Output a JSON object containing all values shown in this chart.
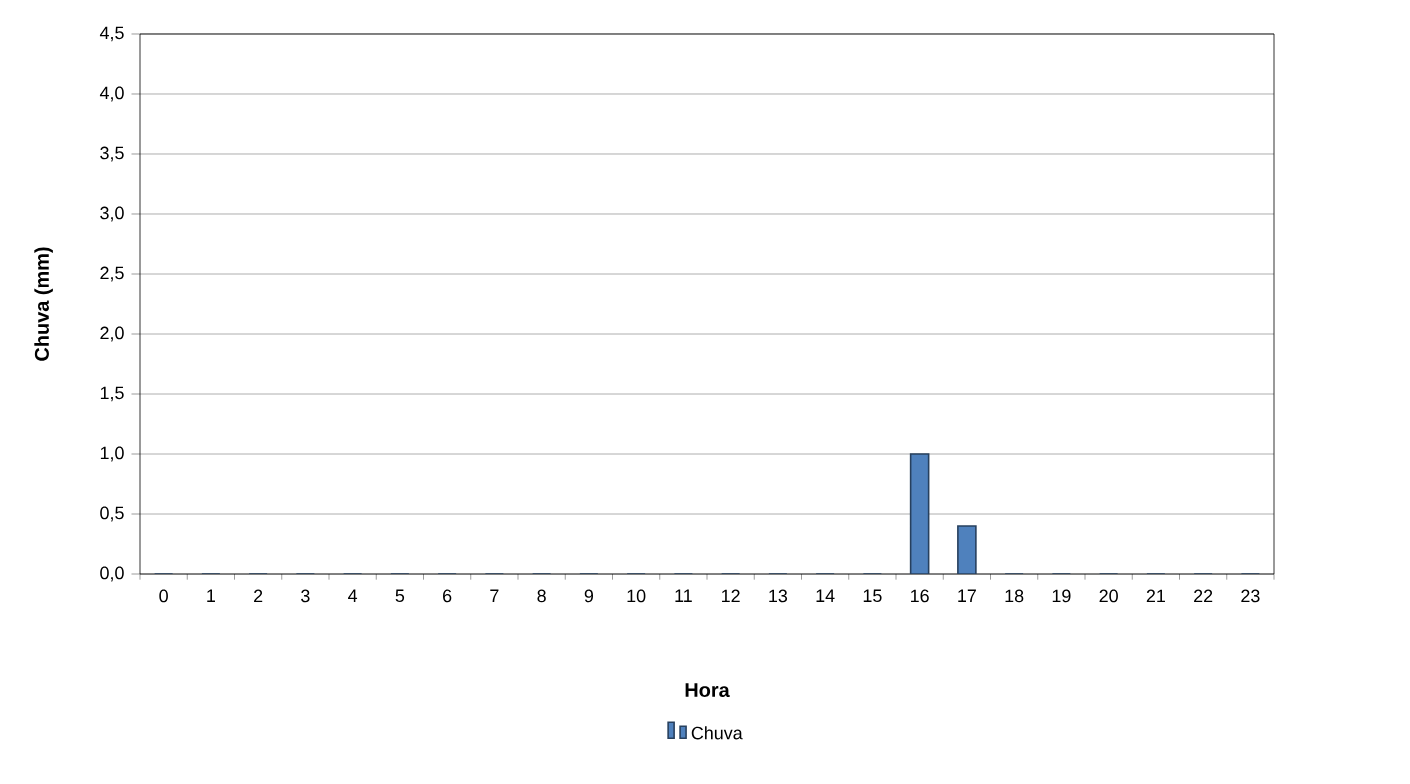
{
  "chart_data": {
    "type": "bar",
    "xlabel": "Hora",
    "ylabel": "Chuva (mm)",
    "categories": [
      "0",
      "1",
      "2",
      "3",
      "4",
      "5",
      "6",
      "7",
      "8",
      "9",
      "10",
      "11",
      "12",
      "13",
      "14",
      "15",
      "16",
      "17",
      "18",
      "19",
      "20",
      "21",
      "22",
      "23"
    ],
    "series": [
      {
        "name": "Chuva",
        "color": "#4f81bd",
        "values": [
          0,
          0,
          0,
          0,
          0,
          0,
          0,
          0,
          0,
          0,
          0,
          0,
          0,
          0,
          0,
          0,
          1.0,
          0.4,
          0,
          0,
          0,
          0,
          0,
          0
        ]
      }
    ],
    "ylim": [
      0,
      4.5
    ],
    "yticks": [
      {
        "value": 0,
        "label": "0,0"
      },
      {
        "value": 0.5,
        "label": "0,5"
      },
      {
        "value": 1,
        "label": "1,0"
      },
      {
        "value": 1.5,
        "label": "1,5"
      },
      {
        "value": 2,
        "label": "2,0"
      },
      {
        "value": 2.5,
        "label": "2,5"
      },
      {
        "value": 3,
        "label": "3,0"
      },
      {
        "value": 3.5,
        "label": "3,5"
      },
      {
        "value": 4,
        "label": "4,0"
      },
      {
        "value": 4.5,
        "label": "4,5"
      }
    ],
    "grid": "y",
    "legend": "bottom"
  }
}
